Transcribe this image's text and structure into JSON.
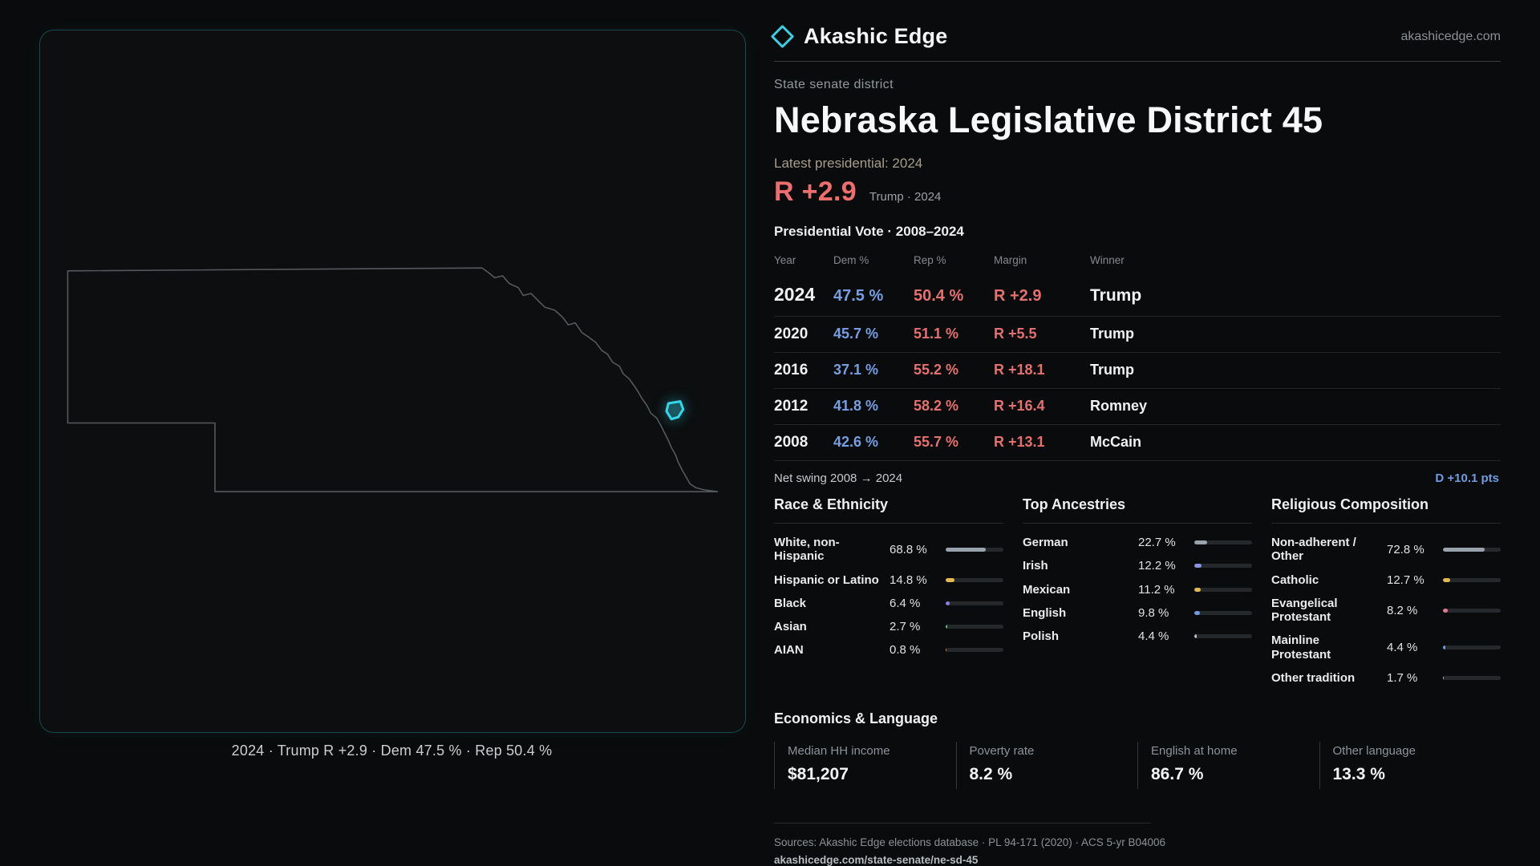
{
  "brand": {
    "name": "Akashic Edge",
    "site": "akashicedge.com",
    "accent": "#3bcfe4"
  },
  "map": {
    "caption": "2024 · Trump R +2.9 · Dem 47.5 % · Rep 50.4 %",
    "highlight_color": "#35d6ea"
  },
  "profile": {
    "kicker": "State senate district",
    "title": "Nebraska Legislative District 45",
    "latest": "Latest presidential: 2024",
    "margin": "R +2.9",
    "margin_sub": "Trump · 2024"
  },
  "vote": {
    "title": "Presidential Vote · 2008–2024",
    "columns": [
      "Year",
      "Dem %",
      "Rep %",
      "Margin",
      "Winner"
    ],
    "rows": [
      {
        "year": "2024",
        "dem": "47.5 %",
        "rep": "50.4 %",
        "margin": "R +2.9",
        "winner": "Trump"
      },
      {
        "year": "2020",
        "dem": "45.7 %",
        "rep": "51.1 %",
        "margin": "R +5.5",
        "winner": "Trump"
      },
      {
        "year": "2016",
        "dem": "37.1 %",
        "rep": "55.2 %",
        "margin": "R +18.1",
        "winner": "Trump"
      },
      {
        "year": "2012",
        "dem": "41.8 %",
        "rep": "58.2 %",
        "margin": "R +16.4",
        "winner": "Romney"
      },
      {
        "year": "2008",
        "dem": "42.6 %",
        "rep": "55.7 %",
        "margin": "R +13.1",
        "winner": "McCain"
      }
    ],
    "swing_label": "Net swing 2008 → 2024",
    "swing_value": "D +10.1 pts"
  },
  "demographics": {
    "race": {
      "title": "Race & Ethnicity",
      "items": [
        {
          "label": "White, non-Hispanic",
          "value": "68.8 %",
          "pct": 68.8,
          "color": "#9aa2ab"
        },
        {
          "label": "Hispanic or Latino",
          "value": "14.8 %",
          "pct": 14.8,
          "color": "#e3b84f"
        },
        {
          "label": "Black",
          "value": "6.4 %",
          "pct": 6.4,
          "color": "#8a7de0"
        },
        {
          "label": "Asian",
          "value": "2.7 %",
          "pct": 2.7,
          "color": "#59c07a"
        },
        {
          "label": "AIAN",
          "value": "0.8 %",
          "pct": 0.8,
          "color": "#e0784f"
        }
      ]
    },
    "ancestry": {
      "title": "Top Ancestries",
      "items": [
        {
          "label": "German",
          "value": "22.7 %",
          "pct": 22.7,
          "color": "#9aa2ab"
        },
        {
          "label": "Irish",
          "value": "12.2 %",
          "pct": 12.2,
          "color": "#8a93e0"
        },
        {
          "label": "Mexican",
          "value": "11.2 %",
          "pct": 11.2,
          "color": "#e3b84f"
        },
        {
          "label": "English",
          "value": "9.8 %",
          "pct": 9.8,
          "color": "#6f9be0"
        },
        {
          "label": "Polish",
          "value": "4.4 %",
          "pct": 4.4,
          "color": "#b9bec4"
        }
      ]
    },
    "religion": {
      "title": "Religious Composition",
      "items": [
        {
          "label": "Non-adherent / Other",
          "value": "72.8 %",
          "pct": 72.8,
          "color": "#9aa2ab"
        },
        {
          "label": "Catholic",
          "value": "12.7 %",
          "pct": 12.7,
          "color": "#e3b84f"
        },
        {
          "label": "Evangelical Protestant",
          "value": "8.2 %",
          "pct": 8.2,
          "color": "#e0788f"
        },
        {
          "label": "Mainline Protestant",
          "value": "4.4 %",
          "pct": 4.4,
          "color": "#6f9be0"
        },
        {
          "label": "Other tradition",
          "value": "1.7 %",
          "pct": 1.7,
          "color": "#b9bec4"
        }
      ]
    }
  },
  "economics": {
    "title": "Economics & Language",
    "stats": [
      {
        "label": "Median HH income",
        "value": "$81,207"
      },
      {
        "label": "Poverty rate",
        "value": "8.2 %"
      },
      {
        "label": "English at home",
        "value": "86.7 %"
      },
      {
        "label": "Other language",
        "value": "13.3 %"
      }
    ]
  },
  "footer": {
    "sources": "Sources: Akashic Edge elections database · PL 94-171 (2020) · ACS 5-yr B04006",
    "url": "akashicedge.com/state-senate/ne-sd-45"
  },
  "chart_data": [
    {
      "type": "table",
      "title": "Presidential Vote · 2008–2024",
      "columns": [
        "Year",
        "Dem %",
        "Rep %",
        "Margin",
        "Winner"
      ],
      "rows": [
        [
          "2024",
          47.5,
          50.4,
          "R +2.9",
          "Trump"
        ],
        [
          "2020",
          45.7,
          51.1,
          "R +5.5",
          "Trump"
        ],
        [
          "2016",
          37.1,
          55.2,
          "R +18.1",
          "Trump"
        ],
        [
          "2012",
          41.8,
          58.2,
          "R +16.4",
          "Romney"
        ],
        [
          "2008",
          42.6,
          55.7,
          "R +13.1",
          "McCain"
        ]
      ],
      "annotations": [
        "Net swing 2008 → 2024: D +10.1 pts",
        "Latest presidential 2024: R +2.9 (Trump)"
      ]
    },
    {
      "type": "bar",
      "title": "Race & Ethnicity",
      "categories": [
        "White, non-Hispanic",
        "Hispanic or Latino",
        "Black",
        "Asian",
        "AIAN"
      ],
      "values": [
        68.8,
        14.8,
        6.4,
        2.7,
        0.8
      ],
      "unit": "%",
      "xlim": [
        0,
        100
      ]
    },
    {
      "type": "bar",
      "title": "Top Ancestries",
      "categories": [
        "German",
        "Irish",
        "Mexican",
        "English",
        "Polish"
      ],
      "values": [
        22.7,
        12.2,
        11.2,
        9.8,
        4.4
      ],
      "unit": "%",
      "xlim": [
        0,
        100
      ]
    },
    {
      "type": "bar",
      "title": "Religious Composition",
      "categories": [
        "Non-adherent / Other",
        "Catholic",
        "Evangelical Protestant",
        "Mainline Protestant",
        "Other tradition"
      ],
      "values": [
        72.8,
        12.7,
        8.2,
        4.4,
        1.7
      ],
      "unit": "%",
      "xlim": [
        0,
        100
      ]
    }
  ]
}
